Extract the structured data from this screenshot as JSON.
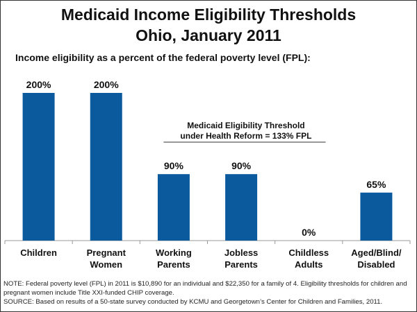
{
  "title_line1": "Medicaid Income Eligibility Thresholds",
  "title_line2": "Ohio, January 2011",
  "subtitle": "Income eligibility as a percent of the federal poverty level (FPL):",
  "annotation": {
    "line1": "Medicaid Eligibility Threshold",
    "line2": "under Health Reform  = 133% FPL"
  },
  "note_line1": "NOTE: Federal poverty level (FPL) in 2011 is $10,890 for an individual and  $22,350 for a family of 4. Eligibility thresholds for children and pregnant women  include Title XXI-funded CHIP coverage.",
  "source_line": "SOURCE: Based on results of a 50-state survey conducted by KCMU and Georgetown’s Center for Children and Families, 2011.",
  "chart_data": {
    "type": "bar",
    "title": "Medicaid Income Eligibility Thresholds Ohio, January 2011",
    "xlabel": "",
    "ylabel": "Income eligibility as a percent of the federal poverty level (FPL)",
    "categories": [
      [
        "Children"
      ],
      [
        "Pregnant",
        "Women"
      ],
      [
        "Working",
        "Parents"
      ],
      [
        "Jobless",
        "Parents"
      ],
      [
        "Childless",
        "Adults"
      ],
      [
        "Aged/Blind/",
        "Disabled"
      ]
    ],
    "values": [
      200,
      200,
      90,
      90,
      0,
      65
    ],
    "data_labels": [
      "200%",
      "200%",
      "90%",
      "90%",
      "0%",
      "65%"
    ],
    "ylim": [
      0,
      200
    ],
    "grid": false,
    "bar_color": "#0B5A9E",
    "reference_line": {
      "value": 133,
      "label": "Medicaid Eligibility Threshold under Health Reform = 133% FPL",
      "x_span": [
        "Working Parents",
        "Childless Adults"
      ]
    }
  }
}
